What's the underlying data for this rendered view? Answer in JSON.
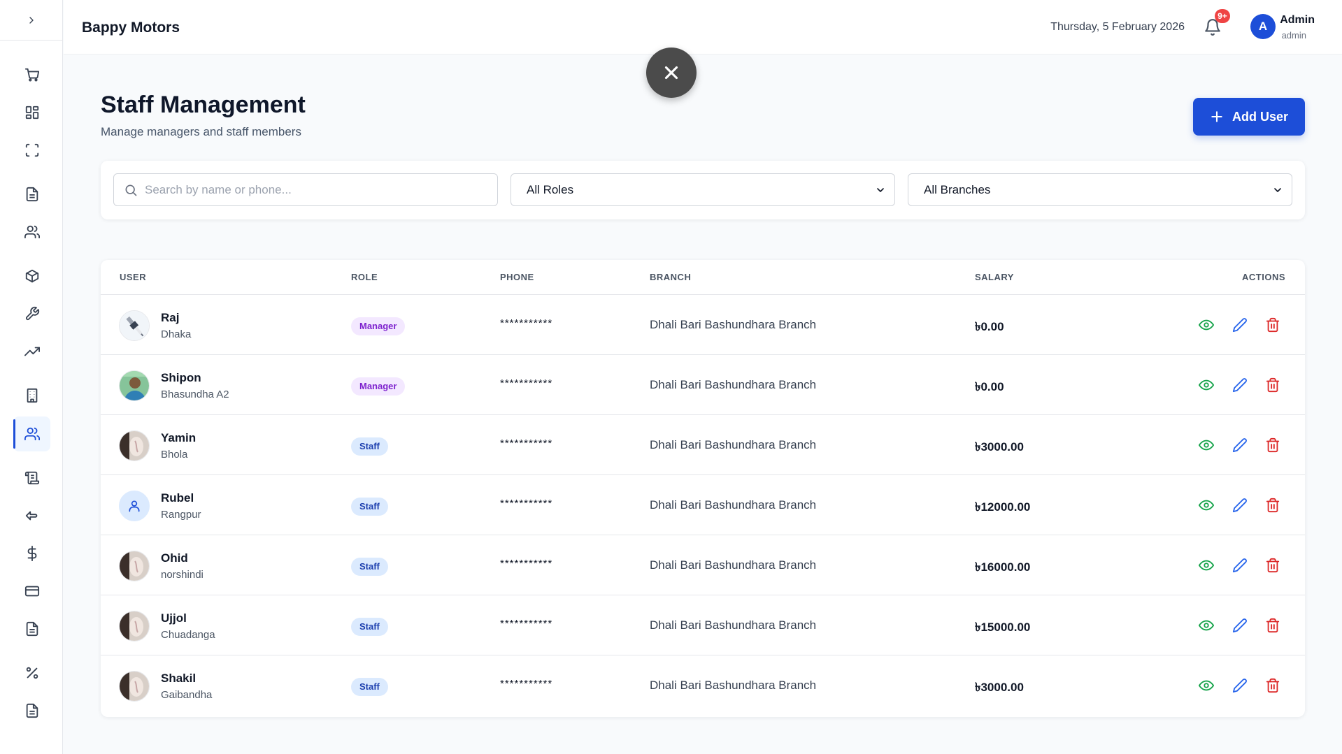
{
  "sidebar": {
    "toggle_icon": "chevron-right-icon",
    "items": [
      {
        "icon": "cart-icon"
      },
      {
        "icon": "grid-icon"
      },
      {
        "icon": "scan-icon"
      },
      {
        "icon": "document-icon"
      },
      {
        "icon": "users-icon"
      },
      {
        "icon": "package-icon"
      },
      {
        "icon": "wrench-icon"
      },
      {
        "icon": "trending-up-icon"
      },
      {
        "icon": "building-icon"
      },
      {
        "icon": "staff-icon",
        "active": true
      },
      {
        "icon": "scroll-icon"
      },
      {
        "icon": "return-icon"
      },
      {
        "icon": "dollar-icon"
      },
      {
        "icon": "credit-card-icon"
      },
      {
        "icon": "report-icon"
      },
      {
        "icon": "percent-icon"
      },
      {
        "icon": "file-icon"
      }
    ]
  },
  "header": {
    "brand": "Bappy Motors",
    "date": "Thursday, 5 February 2026",
    "notification_badge": "9+",
    "avatar_letter": "A",
    "user_name": "Admin",
    "user_role": "admin"
  },
  "page": {
    "title": "Staff Management",
    "subtitle": "Manage managers and staff members",
    "add_button_label": "Add User"
  },
  "filters": {
    "search_placeholder": "Search by name or phone...",
    "role_select": "All Roles",
    "branch_select": "All Branches"
  },
  "table": {
    "headers": {
      "user": "USER",
      "role": "ROLE",
      "phone": "PHONE",
      "branch": "BRANCH",
      "salary": "SALARY",
      "actions": "ACTIONS"
    },
    "rows": [
      {
        "name": "Raj",
        "address": "Dhaka",
        "role": "Manager",
        "phone": "***********",
        "branch": "Dhali Bari Bashundhara Branch",
        "salary": "৳0.00"
      },
      {
        "name": "Shipon",
        "address": "Bhasundha A2",
        "role": "Manager",
        "phone": "***********",
        "branch": "Dhali Bari Bashundhara Branch",
        "salary": "৳0.00"
      },
      {
        "name": "Yamin",
        "address": "Bhola",
        "role": "Staff",
        "phone": "***********",
        "branch": "Dhali Bari Bashundhara Branch",
        "salary": "৳3000.00"
      },
      {
        "name": "Rubel",
        "address": "Rangpur",
        "role": "Staff",
        "phone": "***********",
        "branch": "Dhali Bari Bashundhara Branch",
        "salary": "৳12000.00"
      },
      {
        "name": "Ohid",
        "address": "norshindi",
        "role": "Staff",
        "phone": "***********",
        "branch": "Dhali Bari Bashundhara Branch",
        "salary": "৳16000.00"
      },
      {
        "name": "Ujjol",
        "address": "Chuadanga",
        "role": "Staff",
        "phone": "***********",
        "branch": "Dhali Bari Bashundhara Branch",
        "salary": "৳15000.00"
      },
      {
        "name": "Shakil",
        "address": "Gaibandha",
        "role": "Staff",
        "phone": "***********",
        "branch": "Dhali Bari Bashundhara Branch",
        "salary": "৳3000.00"
      }
    ]
  },
  "colors": {
    "primary": "#1d4ed8",
    "view": "#16a34a",
    "edit": "#2563eb",
    "delete": "#dc2626",
    "manager_badge": "#f3e8ff",
    "staff_badge": "#dbeafe"
  }
}
